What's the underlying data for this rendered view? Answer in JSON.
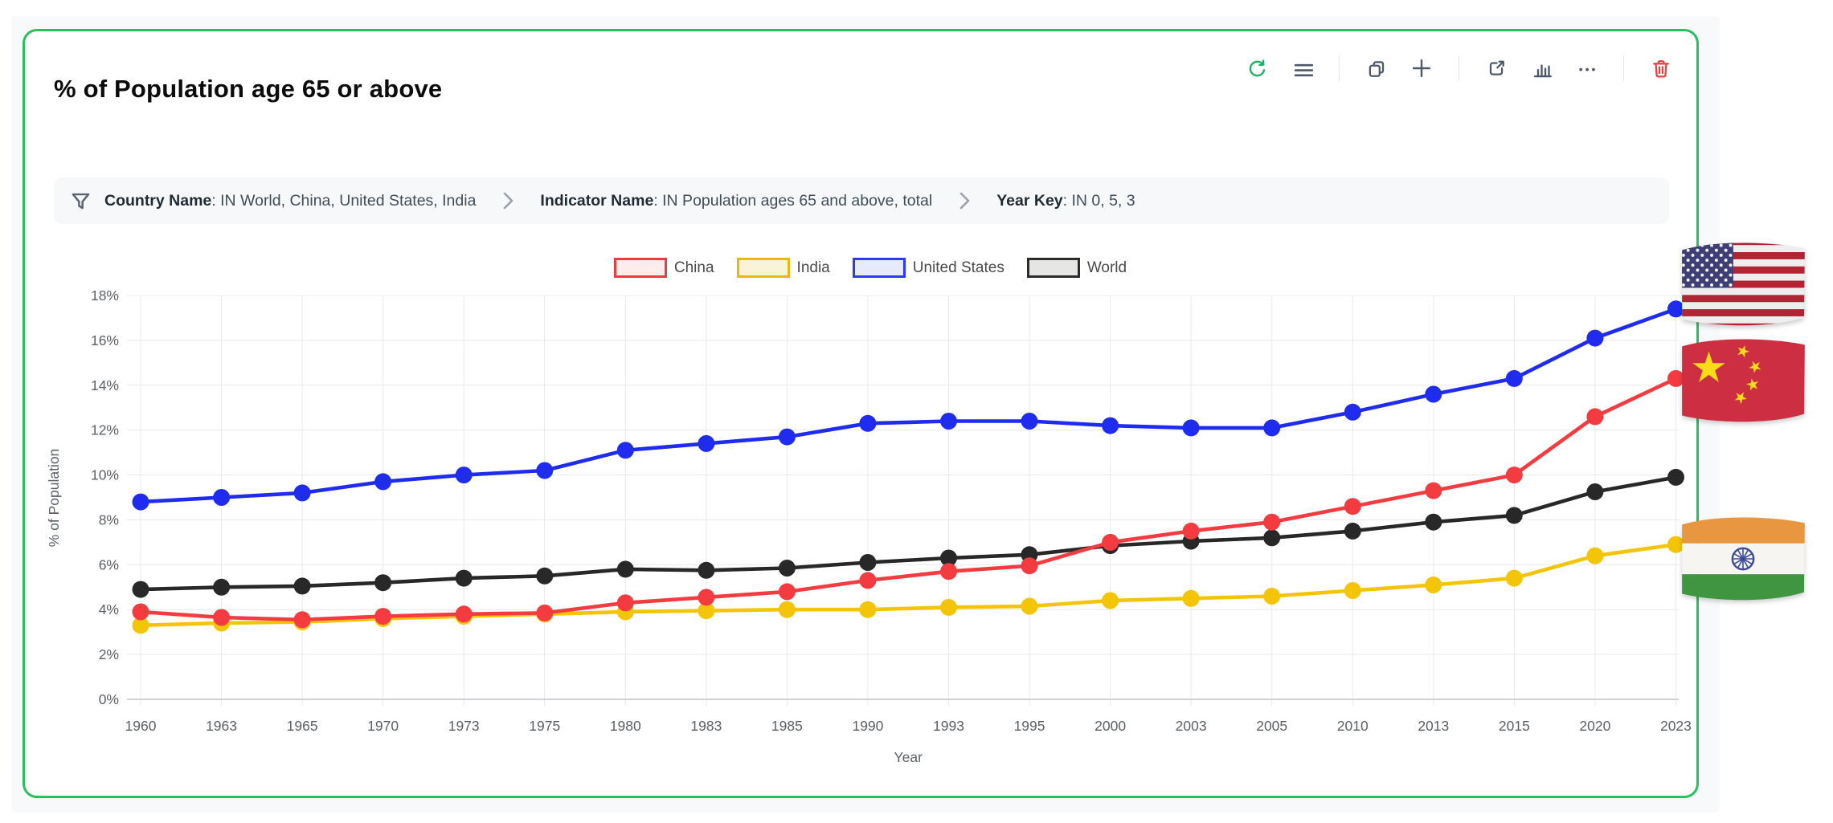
{
  "card": {
    "title": "% of Population age 65 or above",
    "border_color": "#28c05c"
  },
  "toolbar": {
    "icons": [
      {
        "name": "refresh",
        "color": "#1bb25e"
      },
      {
        "name": "menu",
        "color": "#4e5968"
      },
      {
        "name": "copy",
        "color": "#4e5968"
      },
      {
        "name": "add",
        "color": "#4e5968"
      },
      {
        "name": "open-in-new",
        "color": "#4e5968"
      },
      {
        "name": "bar-chart",
        "color": "#4e5968"
      },
      {
        "name": "more",
        "color": "#4e5968"
      },
      {
        "name": "delete",
        "color": "#e4423d"
      }
    ]
  },
  "filter_bar": {
    "colon": ": ",
    "segments": [
      {
        "label": "Country Name",
        "value": "IN World, China, United States, India"
      },
      {
        "label": "Indicator Name",
        "value": "IN Population ages 65 and above, total"
      },
      {
        "label": "Year Key",
        "value": "IN 0, 5, 3"
      }
    ]
  },
  "chart_data": {
    "type": "line",
    "x": [
      "1960",
      "1963",
      "1965",
      "1970",
      "1973",
      "1975",
      "1980",
      "1983",
      "1985",
      "1990",
      "1993",
      "1995",
      "2000",
      "2003",
      "2005",
      "2010",
      "2013",
      "2015",
      "2020",
      "2023"
    ],
    "xlabel": "Year",
    "ylabel": "% of Population",
    "ylim": [
      0,
      18
    ],
    "ytick_step": 2,
    "ytick_suffix": "%",
    "grid": true,
    "legend_position": "top-center",
    "point_style": "filled-circle",
    "series": [
      {
        "name": "China",
        "line_color": "#f43b40",
        "legend_border": "#ee3a41",
        "legend_fill": "#fcecec",
        "values": [
          3.9,
          3.65,
          3.55,
          3.7,
          3.8,
          3.85,
          4.3,
          4.55,
          4.8,
          5.3,
          5.7,
          5.95,
          7.0,
          7.5,
          7.9,
          8.6,
          9.3,
          10.0,
          12.6,
          14.3
        ]
      },
      {
        "name": "India",
        "line_color": "#f4c506",
        "legend_border": "#e9b90c",
        "legend_fill": "#fbf3d8",
        "values": [
          3.3,
          3.4,
          3.45,
          3.6,
          3.7,
          3.8,
          3.9,
          3.95,
          4.0,
          4.0,
          4.1,
          4.15,
          4.4,
          4.5,
          4.6,
          4.85,
          5.1,
          5.4,
          6.4,
          6.9
        ]
      },
      {
        "name": "United States",
        "line_color": "#1f2cee",
        "legend_border": "#2b3cf0",
        "legend_fill": "#e7eafb",
        "values": [
          8.8,
          9.0,
          9.2,
          9.7,
          10.0,
          10.2,
          11.1,
          11.4,
          11.7,
          12.3,
          12.4,
          12.4,
          12.2,
          12.1,
          12.1,
          12.8,
          13.6,
          14.3,
          16.1,
          17.4
        ]
      },
      {
        "name": "World",
        "line_color": "#282828",
        "legend_border": "#2b2b2b",
        "legend_fill": "#e5e5e3",
        "values": [
          4.9,
          5.0,
          5.05,
          5.2,
          5.4,
          5.5,
          5.8,
          5.75,
          5.85,
          6.1,
          6.3,
          6.45,
          6.85,
          7.05,
          7.2,
          7.5,
          7.9,
          8.2,
          9.25,
          9.9
        ]
      }
    ],
    "draw_order": [
      1,
      3,
      0,
      2
    ]
  },
  "flags": [
    {
      "name": "united-states-flag"
    },
    {
      "name": "china-flag"
    },
    {
      "name": "india-flag"
    }
  ]
}
